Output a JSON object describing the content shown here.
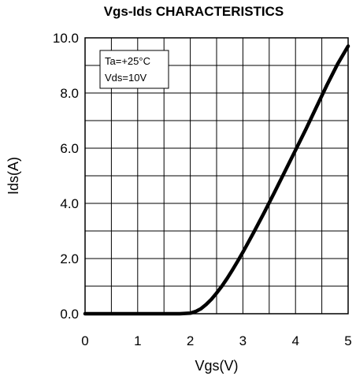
{
  "chart_data": {
    "type": "line",
    "title": "Vgs-Ids CHARACTERISTICS",
    "xlabel": "Vgs(V)",
    "ylabel": "Ids(A)",
    "xlim": [
      0,
      5
    ],
    "ylim": [
      0,
      10
    ],
    "x_ticks": [
      0,
      1,
      2,
      3,
      4,
      5
    ],
    "x_tick_labels": [
      "0",
      "1",
      "2",
      "3",
      "4",
      "5"
    ],
    "y_ticks": [
      0,
      2,
      4,
      6,
      8,
      10
    ],
    "y_tick_labels": [
      "0.0",
      "2.0",
      "4.0",
      "6.0",
      "8.0",
      "10.0"
    ],
    "x_grid_step": 0.5,
    "y_grid_step": 1.0,
    "grid": true,
    "annotations": [
      "Ta=+25°C",
      "Vds=10V"
    ],
    "series": [
      {
        "x": [
          0,
          1.8,
          2.0,
          2.1,
          2.2,
          2.3,
          2.4,
          2.5,
          2.6,
          2.7,
          2.8,
          2.9,
          3.0,
          3.2,
          3.4,
          3.6,
          3.8,
          4.0,
          4.2,
          4.4,
          4.6,
          4.8,
          5.0
        ],
        "values": [
          0,
          0,
          0.02,
          0.08,
          0.18,
          0.33,
          0.52,
          0.75,
          1.0,
          1.28,
          1.58,
          1.9,
          2.23,
          2.93,
          3.65,
          4.4,
          5.16,
          5.93,
          6.7,
          7.5,
          8.3,
          9.05,
          9.7
        ]
      }
    ]
  }
}
